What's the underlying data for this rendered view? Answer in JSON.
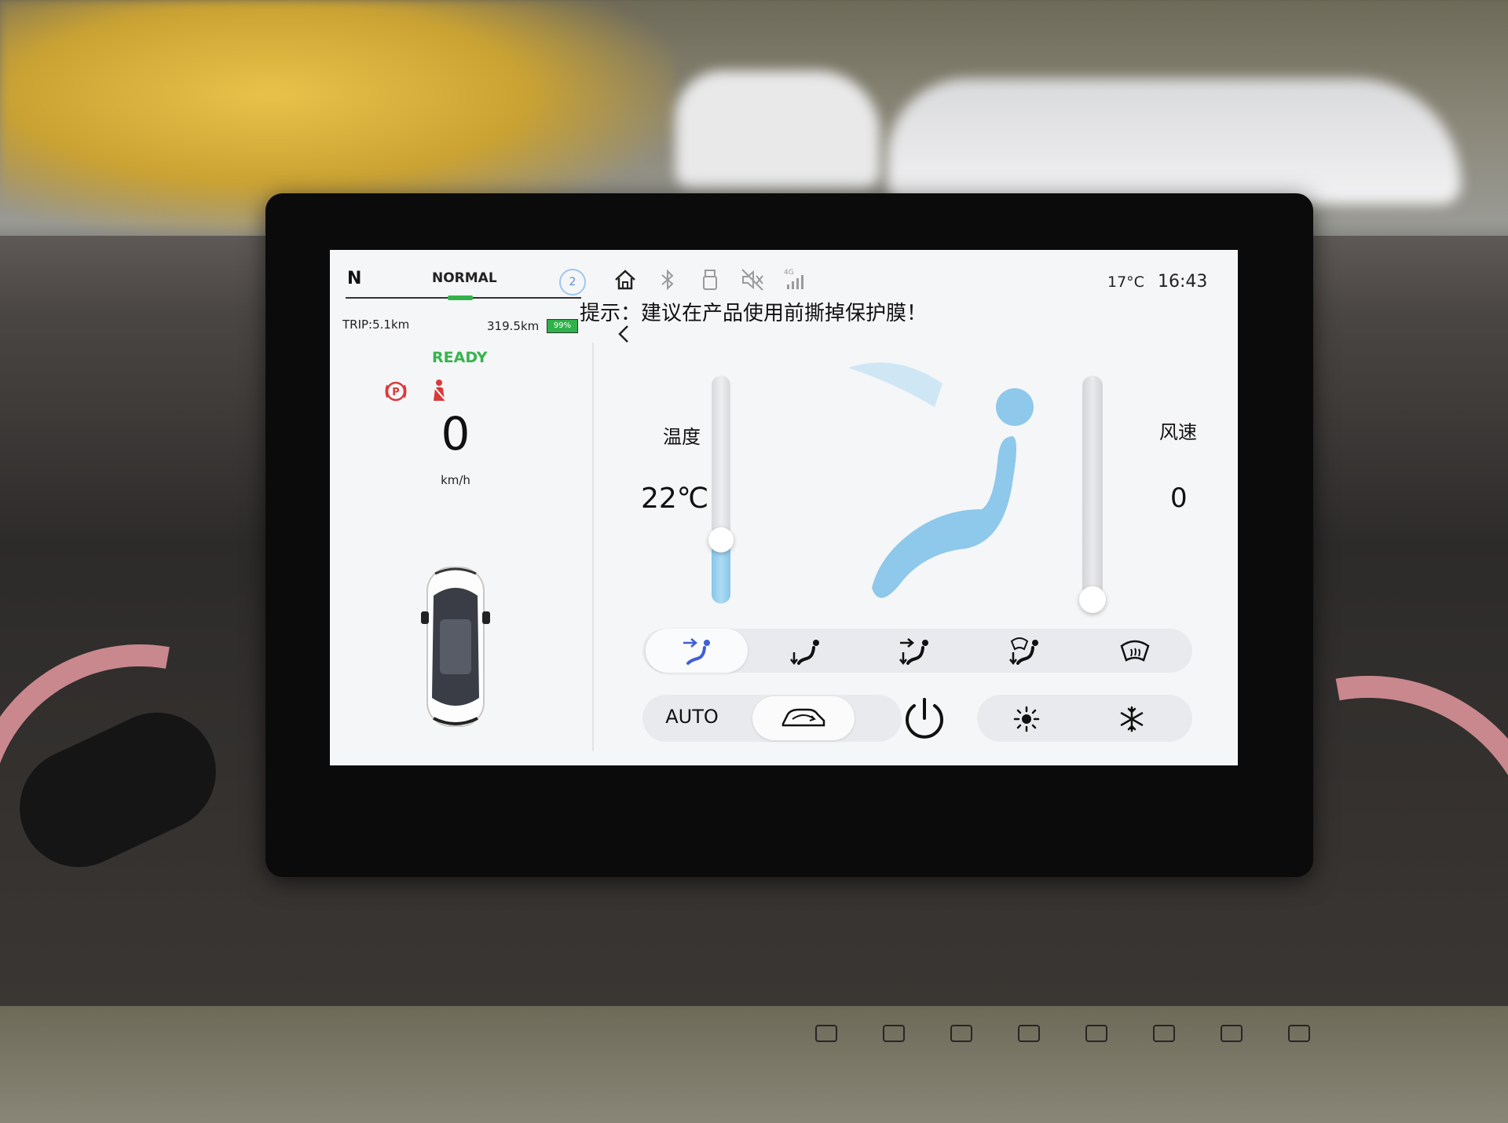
{
  "status": {
    "gear": "N",
    "drive_mode": "NORMAL",
    "notification_count": "2",
    "trip": "TRIP:5.1km",
    "range": "319.5km",
    "battery": "99%",
    "ready": "READY",
    "speed": "0",
    "speed_unit": "km/h",
    "outside_temp": "17°C",
    "time": "16:43",
    "icons": [
      "home-icon",
      "bluetooth-icon",
      "usb-icon",
      "mute-icon",
      "4g-signal-icon"
    ],
    "signal_label": "4G"
  },
  "notice": "提示：建议在产品使用前撕掉保护膜！",
  "climate": {
    "temp_label": "温度",
    "temp_value": "22℃",
    "temp_level": 0.28,
    "fan_label": "风速",
    "fan_value": "0",
    "fan_level": 0.0,
    "auto_label": "AUTO",
    "airflow_modes": [
      "face-vent-icon",
      "foot-vent-icon",
      "face-foot-vent-icon",
      "foot-defrost-icon",
      "windshield-defrost-icon"
    ],
    "active_mode": 0,
    "accent": "#8ec8ea"
  },
  "colors": {
    "ready": "#36b44c",
    "warning": "#d93a3a",
    "accent_blue": "#3f5fd8"
  }
}
